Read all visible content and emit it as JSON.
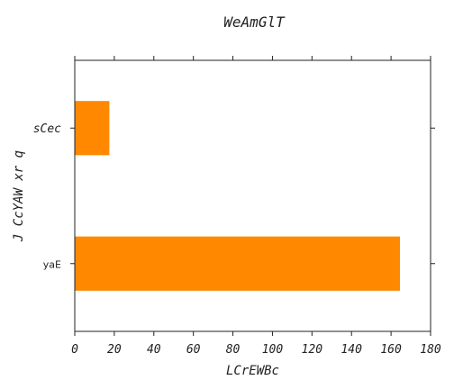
{
  "chart_data": {
    "type": "bar",
    "orientation": "horizontal",
    "title": "WeAmGlT",
    "xlabel": "LCrEWBc",
    "ylabel": "J  CcYAW xr q",
    "categories": [
      "sCec",
      "yaE"
    ],
    "values": [
      17.5,
      164.5
    ],
    "xlim": [
      0,
      180
    ],
    "x_ticks": [
      0,
      20,
      40,
      60,
      80,
      100,
      120,
      140,
      160,
      180
    ],
    "grid": false,
    "bar_color": "#ff8800"
  }
}
